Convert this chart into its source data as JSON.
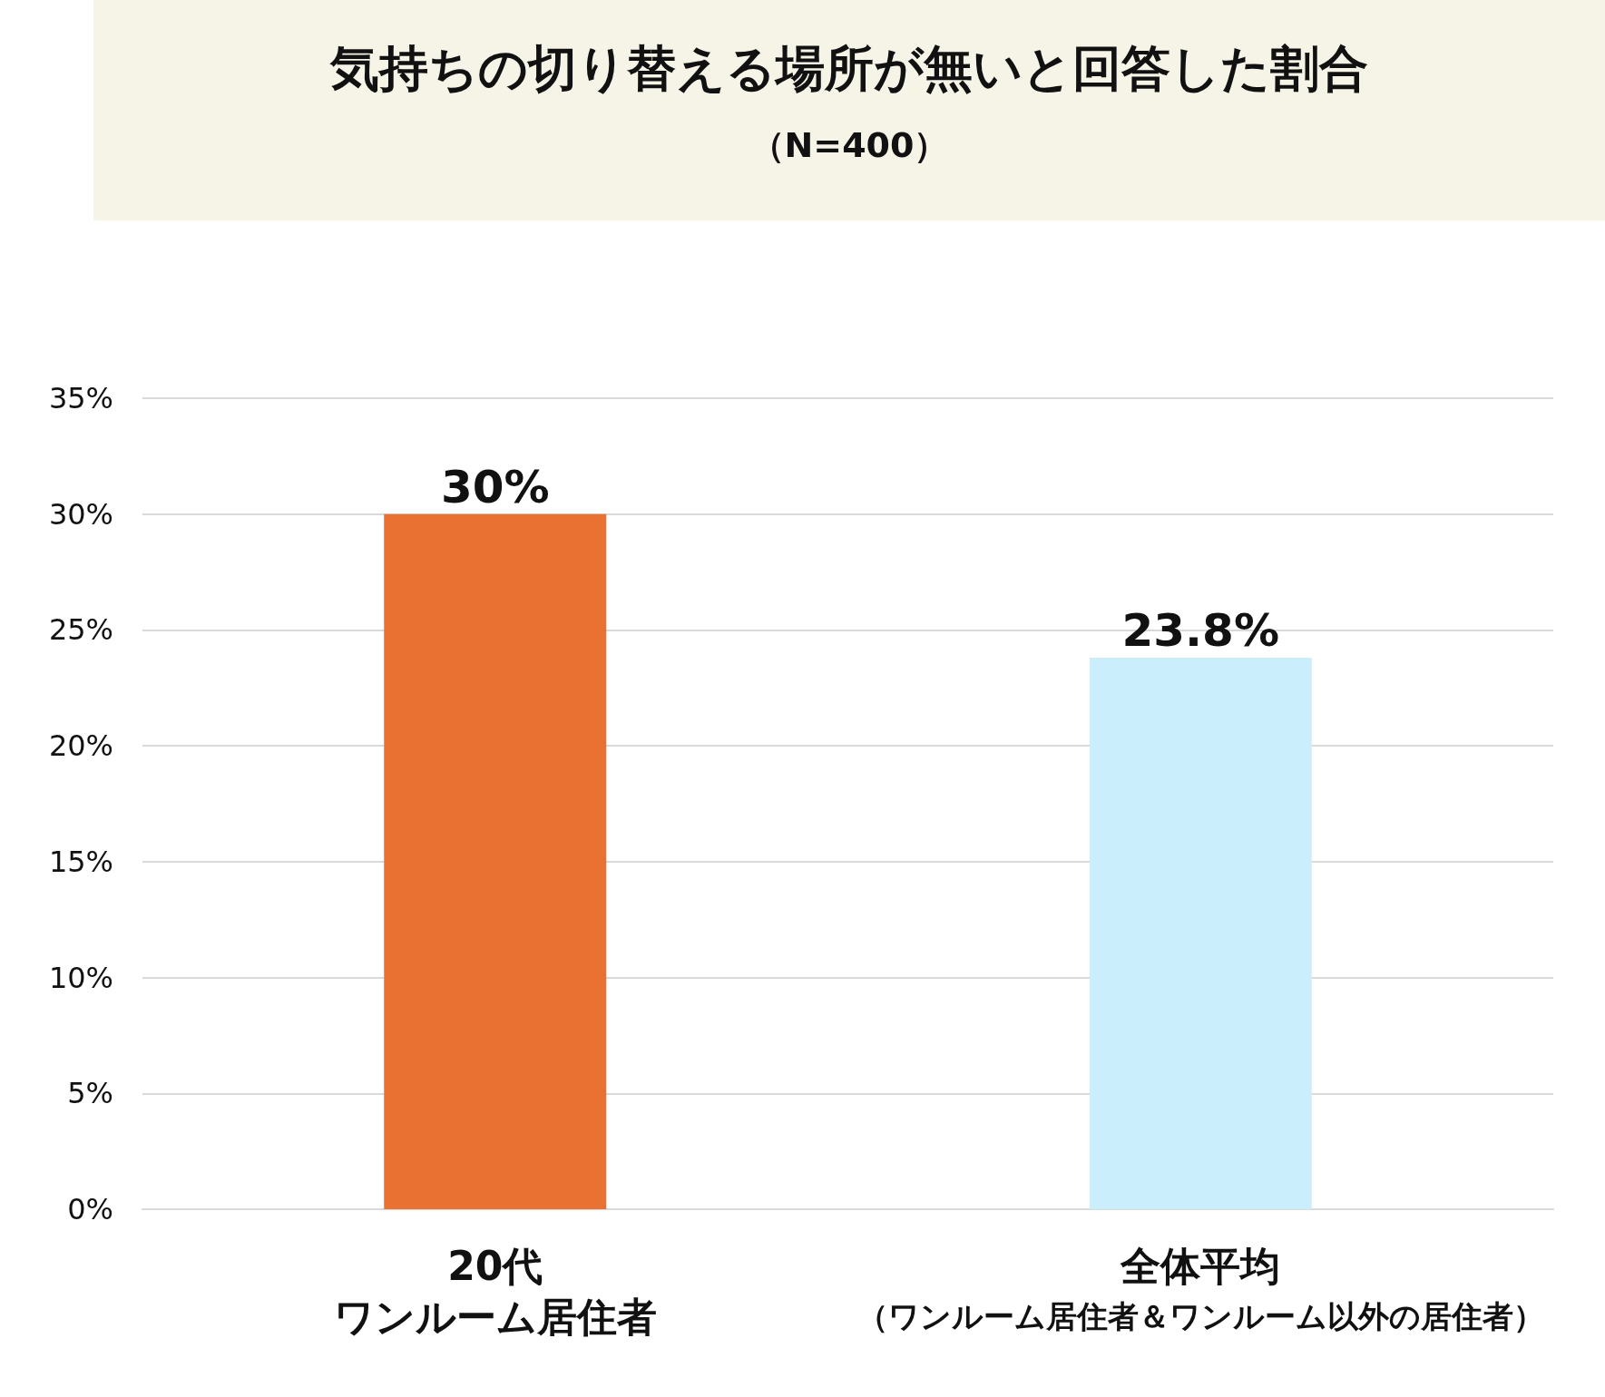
{
  "chart_data": {
    "type": "bar",
    "title": "気持ちの切り替える場所が無いと回答した割合",
    "subtitle": "（N=400）",
    "categories": [
      "20代",
      "全体平均"
    ],
    "annotations": [
      "ワンルーム居住者",
      "（ワンルーム居住者＆ワンルーム以外の居住者）"
    ],
    "values": [
      30,
      23.8
    ],
    "colors": [
      "#e97132",
      "#caeefb"
    ],
    "value_labels": [
      "30%",
      "23.8%"
    ],
    "ylim": [
      0,
      35
    ],
    "yticks": [
      {
        "value": 0,
        "label": "0%"
      },
      {
        "value": 5,
        "label": "5%"
      },
      {
        "value": 10,
        "label": "10%"
      },
      {
        "value": 15,
        "label": "15%"
      },
      {
        "value": 20,
        "label": "20%"
      },
      {
        "value": 25,
        "label": "25%"
      },
      {
        "value": 30,
        "label": "30%"
      },
      {
        "value": 35,
        "label": "35%"
      }
    ],
    "grid": "y"
  }
}
